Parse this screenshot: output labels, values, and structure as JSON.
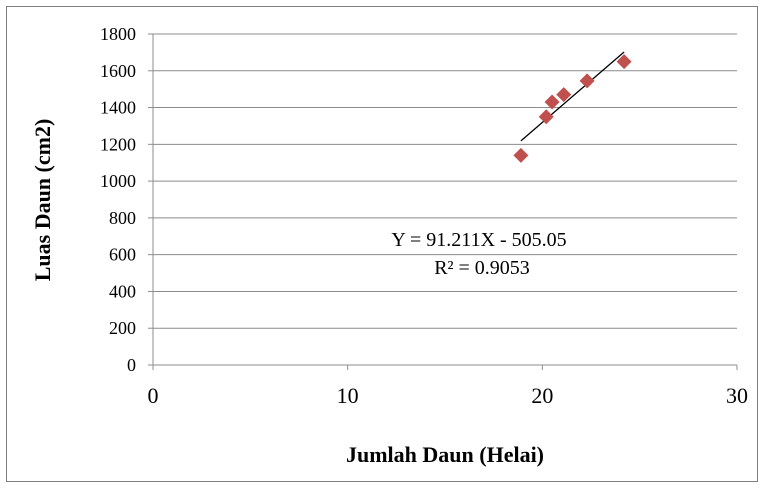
{
  "chart_data": {
    "type": "scatter",
    "title": "",
    "xlabel": "Jumlah Daun (Helai)",
    "ylabel": "Luas Daun (cm2)",
    "xlim": [
      0,
      30
    ],
    "ylim": [
      0,
      1800
    ],
    "x_ticks": [
      "0",
      "10",
      "20",
      "30"
    ],
    "y_ticks": [
      "0",
      "200",
      "400",
      "600",
      "800",
      "1000",
      "1200",
      "1400",
      "1600",
      "1800"
    ],
    "grid": "horizontal",
    "marker": "diamond",
    "marker_color": "#c0504d",
    "trendline_color": "#000000",
    "series": [
      {
        "points": [
          {
            "x": 18.9,
            "y": 1140
          },
          {
            "x": 20.2,
            "y": 1350
          },
          {
            "x": 20.5,
            "y": 1430
          },
          {
            "x": 21.1,
            "y": 1470
          },
          {
            "x": 22.3,
            "y": 1545
          },
          {
            "x": 24.2,
            "y": 1650
          }
        ]
      }
    ],
    "trendline": {
      "slope": 91.211,
      "intercept": -505.05,
      "x_range": [
        18.9,
        24.2
      ]
    },
    "annotations": {
      "equation": "Y = 91.211X - 505.05",
      "r_squared": "R² = 0.9053"
    }
  }
}
